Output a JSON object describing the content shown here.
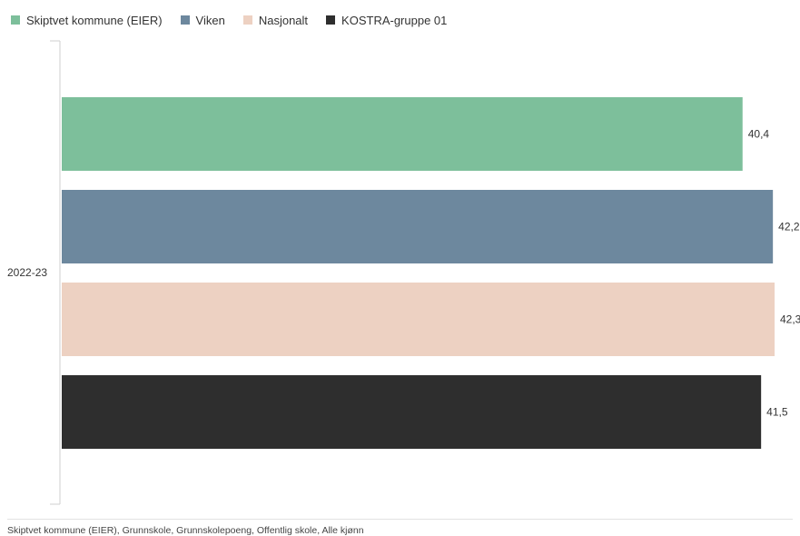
{
  "legend": [
    {
      "label": "Skiptvet kommune (EIER)",
      "color": "#7dbf9b"
    },
    {
      "label": "Viken",
      "color": "#6d889e"
    },
    {
      "label": "Nasjonalt",
      "color": "#edd1c2"
    },
    {
      "label": "KOSTRA-gruppe 01",
      "color": "#2e2e2e"
    }
  ],
  "chart_data": {
    "type": "bar",
    "orientation": "horizontal",
    "categories": [
      "2022-23"
    ],
    "series": [
      {
        "name": "Skiptvet kommune (EIER)",
        "values": [
          40.4
        ],
        "labels": [
          "40,4"
        ],
        "color": "#7dbf9b"
      },
      {
        "name": "Viken",
        "values": [
          42.2
        ],
        "labels": [
          "42,2"
        ],
        "color": "#6d889e"
      },
      {
        "name": "Nasjonalt",
        "values": [
          42.3
        ],
        "labels": [
          "42,3"
        ],
        "color": "#edd1c2"
      },
      {
        "name": "KOSTRA-gruppe 01",
        "values": [
          41.5
        ],
        "labels": [
          "41,5"
        ],
        "color": "#2e2e2e"
      }
    ],
    "xlim": [
      0,
      43
    ],
    "grid": false,
    "legend_position": "top-left"
  },
  "footer": "Skiptvet kommune (EIER), Grunnskole, Grunnskolepoeng, Offentlig skole, Alle kjønn"
}
